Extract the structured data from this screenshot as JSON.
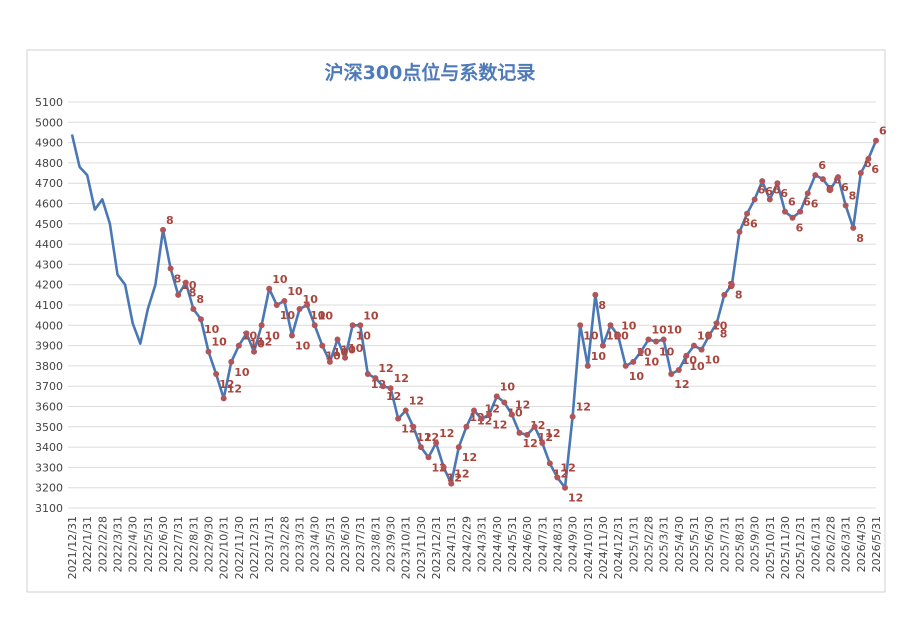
{
  "chart_data": {
    "type": "line",
    "title": "沪深300点位与系数记录",
    "categories": [
      "2021/12/31",
      null,
      "2022/1/31",
      null,
      "2022/2/28",
      null,
      "2022/3/31",
      null,
      "2022/4/30",
      null,
      "2022/5/31",
      null,
      "2022/6/30",
      null,
      "2022/7/31",
      null,
      "2022/8/31",
      null,
      "2022/9/30",
      null,
      "2022/10/31",
      null,
      "2022/11/30",
      null,
      "2022/12/31",
      null,
      "2023/1/31",
      null,
      "2023/2/28",
      null,
      "2023/3/31",
      null,
      "2023/4/30",
      null,
      "2023/5/31",
      null,
      "2023/6/30",
      null,
      "2023/7/31",
      null,
      "2023/8/31",
      null,
      "2023/9/30",
      null,
      "2023/10/31",
      null,
      "2023/11/30",
      null,
      "2023/12/31",
      null,
      "2024/1/31",
      null,
      "2024/2/29",
      null,
      "2024/3/31",
      null,
      "2024/4/30",
      null,
      "2024/5/31",
      null,
      "2024/6/30",
      null,
      "2024/7/31",
      null,
      "2024/8/31",
      null,
      "2024/9/30",
      null,
      "2024/10/31",
      null,
      "2024/11/30",
      null,
      "2024/12/31",
      null,
      "2025/1/31",
      null,
      "2025/2/28",
      null,
      "2025/3/31",
      null,
      "2025/4/30",
      null,
      "2025/5/31",
      null,
      "2025/6/30",
      null,
      "2025/7/31",
      null,
      "2025/8/31",
      null,
      "2025/9/30",
      null,
      "2025/10/31",
      null,
      "2025/11/30",
      null,
      "2025/12/31",
      null,
      "2026/1/31",
      null,
      "2026/2/28",
      null,
      "2026/3/31",
      null,
      "2026/4/30",
      null,
      "2026/5/31"
    ],
    "series": [
      {
        "color": "#4a78b5",
        "marker_color": "#b0555a",
        "values": [
          4940,
          4780,
          4740,
          4570,
          4620,
          4500,
          4250,
          4200,
          4010,
          3910,
          4080,
          4200,
          4470,
          4280,
          4150,
          4210,
          4080,
          4030,
          3870,
          3760,
          3640,
          3820,
          3900,
          3960,
          3870,
          4000,
          4180,
          4100,
          4120,
          3950,
          4080,
          4100,
          4000,
          3900,
          3820,
          3930,
          3840,
          4000,
          4000,
          3760,
          3740,
          3700,
          3690,
          3540,
          3580,
          3500,
          3400,
          3350,
          3420,
          3300,
          3220,
          3400,
          3500,
          3580,
          3540,
          3560,
          3650,
          3620,
          3560,
          3470,
          3460,
          3500,
          3420,
          3320,
          3250,
          3200,
          3550,
          4000,
          3800,
          4150,
          3900,
          4000,
          3950,
          3800,
          3820,
          3870,
          3930,
          3920,
          3930,
          3760,
          3780,
          3850,
          3900,
          3880,
          3950,
          4010,
          4150,
          4200,
          4460,
          4550,
          4620,
          4710,
          4620,
          4700,
          4560,
          4530,
          4560,
          4650,
          4740,
          4720,
          4670,
          4730,
          4590,
          4480,
          4750,
          4820,
          4910
        ],
        "coefficients": [
          null,
          null,
          null,
          null,
          null,
          null,
          null,
          null,
          null,
          null,
          null,
          null,
          8,
          8,
          10,
          8,
          8,
          10,
          10,
          12,
          12,
          10,
          10,
          10,
          12,
          10,
          10,
          10,
          10,
          10,
          10,
          10,
          10,
          10,
          10,
          10,
          10,
          10,
          10,
          12,
          12,
          12,
          12,
          12,
          12,
          12,
          12,
          12,
          12,
          12,
          12,
          12,
          12,
          12,
          12,
          12,
          10,
          10,
          12,
          12,
          12,
          12,
          12,
          12,
          12,
          12,
          12,
          10,
          10,
          8,
          10,
          10,
          10,
          10,
          10,
          10,
          10,
          10,
          10,
          12,
          10,
          10,
          10,
          10,
          10,
          8,
          8,
          8,
          8,
          6,
          6,
          6,
          6,
          6,
          6,
          6,
          6,
          6,
          6,
          6,
          6,
          6,
          8,
          8,
          6,
          6,
          6
        ]
      }
    ],
    "ylim": [
      3100,
      5100
    ],
    "yticks": [
      3100,
      3200,
      3300,
      3400,
      3500,
      3600,
      3700,
      3800,
      3900,
      4000,
      4100,
      4200,
      4300,
      4400,
      4500,
      4600,
      4700,
      4800,
      4900,
      5000,
      5100
    ],
    "grid": true
  }
}
